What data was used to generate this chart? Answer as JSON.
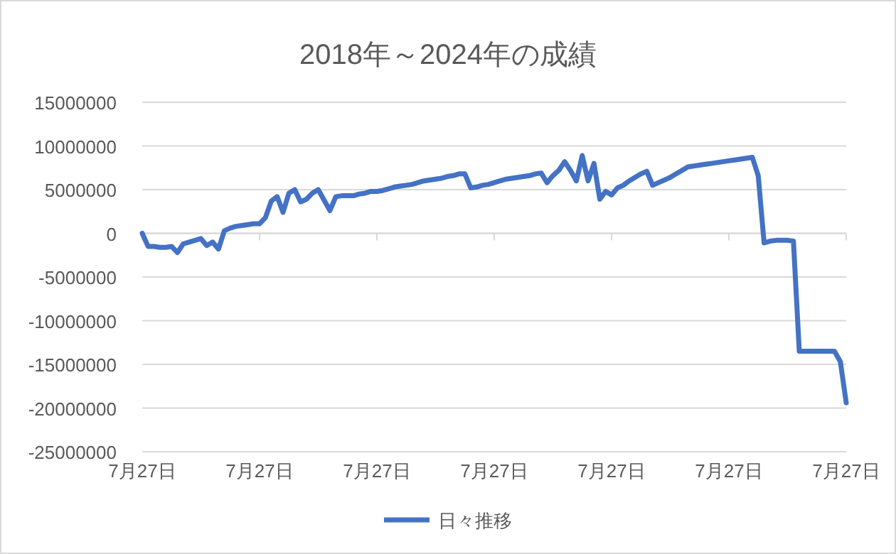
{
  "chart_data": {
    "type": "line",
    "title": "2018年～2024年の成績",
    "categories": [
      "7月27日",
      null,
      null,
      null,
      null,
      null,
      null,
      null,
      null,
      null,
      null,
      null,
      null,
      null,
      null,
      null,
      null,
      null,
      null,
      null,
      "7月27日",
      null,
      null,
      null,
      null,
      null,
      null,
      null,
      null,
      null,
      null,
      null,
      null,
      null,
      null,
      null,
      null,
      null,
      null,
      null,
      "7月27日",
      null,
      null,
      null,
      null,
      null,
      null,
      null,
      null,
      null,
      null,
      null,
      null,
      null,
      null,
      null,
      null,
      null,
      null,
      null,
      "7月27日",
      null,
      null,
      null,
      null,
      null,
      null,
      null,
      null,
      null,
      null,
      null,
      null,
      null,
      null,
      null,
      null,
      null,
      null,
      null,
      "7月27日",
      null,
      null,
      null,
      null,
      null,
      null,
      null,
      null,
      null,
      null,
      null,
      null,
      null,
      null,
      null,
      null,
      null,
      null,
      null,
      "7月27日",
      null,
      null,
      null,
      null,
      null,
      null,
      null,
      null,
      null,
      null,
      null,
      null,
      null,
      null,
      null,
      null,
      null,
      null,
      null,
      "7月27日"
    ],
    "series": [
      {
        "name": "日々推移",
        "color": "#4472c4",
        "values": [
          0,
          -1500000,
          -1500000,
          -1600000,
          -1600000,
          -1500000,
          -2200000,
          -1200000,
          -1000000,
          -800000,
          -600000,
          -1400000,
          -1000000,
          -1800000,
          300000,
          600000,
          800000,
          900000,
          1000000,
          1100000,
          1100000,
          1800000,
          3700000,
          4200000,
          2400000,
          4600000,
          5000000,
          3600000,
          3900000,
          4600000,
          5000000,
          3800000,
          2600000,
          4200000,
          4300000,
          4300000,
          4300000,
          4500000,
          4600000,
          4800000,
          4800000,
          4900000,
          5100000,
          5300000,
          5400000,
          5500000,
          5600000,
          5800000,
          6000000,
          6100000,
          6200000,
          6300000,
          6500000,
          6600000,
          6800000,
          6800000,
          5200000,
          5300000,
          5500000,
          5600000,
          5800000,
          6000000,
          6200000,
          6300000,
          6400000,
          6500000,
          6600000,
          6800000,
          6900000,
          5800000,
          6600000,
          7200000,
          8200000,
          7200000,
          6000000,
          8900000,
          6000000,
          8000000,
          3900000,
          4800000,
          4400000,
          5200000,
          5500000,
          6000000,
          6400000,
          6800000,
          7100000,
          5500000,
          5800000,
          6100000,
          6400000,
          6800000,
          7200000,
          7600000,
          7700000,
          7800000,
          7900000,
          8000000,
          8100000,
          8200000,
          8300000,
          8400000,
          8500000,
          8600000,
          8700000,
          6600000,
          -1100000,
          -900000,
          -800000,
          -800000,
          -800000,
          -900000,
          -13500000,
          -13500000,
          -13500000,
          -13500000,
          -13500000,
          -13500000,
          -13500000,
          -14700000,
          -19400000
        ]
      }
    ],
    "ylim": [
      -25000000,
      15000000
    ],
    "yticks": [
      -25000000,
      -20000000,
      -15000000,
      -10000000,
      -5000000,
      0,
      5000000,
      10000000,
      15000000
    ],
    "grid": "y",
    "legend": "bottom",
    "marker": "none",
    "line_style": "solid"
  }
}
